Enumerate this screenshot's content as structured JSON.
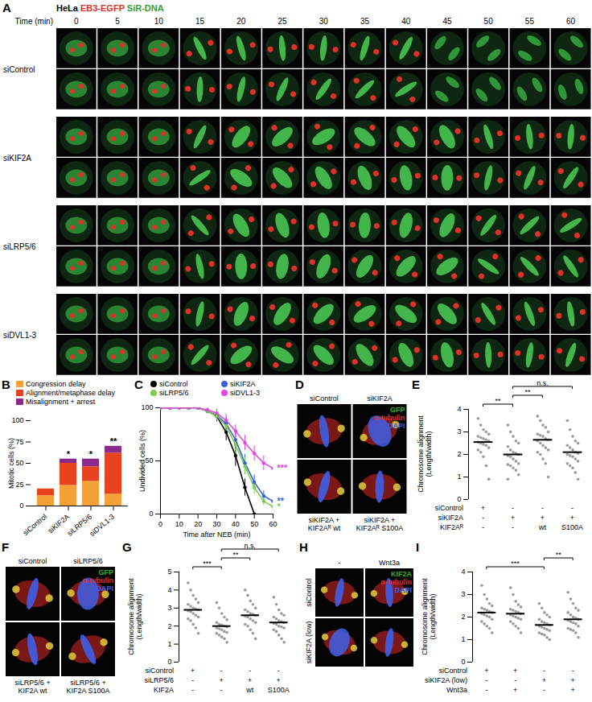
{
  "image_panels": [
    {
      "panel": "A",
      "header": [
        {
          "text": "HeLa",
          "color": "#000000"
        },
        {
          "text": "EB3-EGFP",
          "color": "#e0302a"
        },
        {
          "text": "SiR-DNA",
          "color": "#2e9e3e"
        }
      ],
      "time_label": "Time (min)",
      "times": [
        0,
        5,
        10,
        15,
        20,
        25,
        30,
        35,
        40,
        45,
        50,
        55,
        60
      ],
      "groups": [
        "siControl",
        "siKIF2A",
        "siLRP5/6",
        "siDVL1-3"
      ],
      "rows_per_group": 2
    },
    {
      "panel": "D",
      "top_labels": [
        "siControl",
        "siKIF2A"
      ],
      "bottom_labels": [
        [
          "siKIF2A +",
          "KIF2Aᴿ wt"
        ],
        [
          "siKIF2A +",
          "KIF2Aᴿ S100A"
        ]
      ],
      "legend": [
        {
          "text": "GFP",
          "color": "#2fb52f"
        },
        {
          "text": "α-tubulin",
          "color": "#e03030"
        },
        {
          "text": "DAPI",
          "color": "#3a5cff"
        }
      ]
    },
    {
      "panel": "F",
      "top_labels": [
        "siControl",
        "siLRP5/6"
      ],
      "bottom_labels": [
        [
          "siLRP5/6 +",
          "KIF2A wt"
        ],
        [
          "siLRP5/6 +",
          "KIF2A S100A"
        ]
      ],
      "legend": [
        {
          "text": "GFP",
          "color": "#2fb52f"
        },
        {
          "text": "α-tubulin",
          "color": "#e03030"
        },
        {
          "text": "DAPI",
          "color": "#3a5cff"
        }
      ]
    },
    {
      "panel": "H",
      "column_labels": [
        "-",
        "Wnt3a"
      ],
      "row_labels": [
        "siControl",
        "siKIF2A (low)"
      ],
      "legend": [
        {
          "text": "KIF2A",
          "color": "#2fb52f"
        },
        {
          "text": "α-tubulin",
          "color": "#e03030"
        },
        {
          "text": "DAPI",
          "color": "#3a5cff"
        }
      ]
    }
  ],
  "chart_data": [
    {
      "panel": "B",
      "type": "bar",
      "stacked": true,
      "legend": "top",
      "categories": [
        "siControl",
        "siKIF2A",
        "siLRP5/6",
        "siDVL1-3"
      ],
      "series": [
        {
          "name": "Congression delay",
          "color": "#f4a238",
          "values": [
            12,
            24,
            29,
            14
          ]
        },
        {
          "name": "Alignment/metaphase delay",
          "color": "#e8431e",
          "values": [
            8,
            26,
            17,
            48
          ]
        },
        {
          "name": "Misalignment + arrest",
          "color": "#8a2a8a",
          "values": [
            0,
            5,
            9,
            8
          ]
        }
      ],
      "ylabel": "Mitotic cells (%)",
      "ylim": [
        0,
        100
      ],
      "yticks": [
        0,
        25,
        50,
        75,
        100
      ],
      "annotations": [
        {
          "category": "siKIF2A",
          "text": "*"
        },
        {
          "category": "siLRP5/6",
          "text": "*"
        },
        {
          "category": "siDVL1-3",
          "text": "**"
        }
      ]
    },
    {
      "panel": "C",
      "type": "line",
      "marker": "circle",
      "legend": "top",
      "x": [
        0,
        5,
        10,
        15,
        20,
        25,
        30,
        35,
        40,
        45,
        50,
        55,
        60
      ],
      "series": [
        {
          "name": "siControl",
          "color": "#000000",
          "values": [
            100,
            100,
            100,
            100,
            100,
            97,
            92,
            77,
            55,
            25,
            0,
            null,
            null
          ],
          "errors": [
            0,
            0,
            0,
            0,
            0,
            2,
            5,
            8,
            10,
            8,
            0,
            null,
            null
          ]
        },
        {
          "name": "siKIF2A",
          "color": "#3a5fd9",
          "values": [
            100,
            100,
            100,
            100,
            100,
            97,
            93,
            85,
            70,
            48,
            30,
            17,
            12
          ],
          "errors": [
            0,
            0,
            0,
            0,
            0,
            2,
            4,
            6,
            8,
            8,
            7,
            5,
            4
          ],
          "annotation": "**"
        },
        {
          "name": "siLRP5/6",
          "color": "#7ccf4e",
          "values": [
            100,
            100,
            100,
            100,
            100,
            97,
            92,
            83,
            65,
            45,
            25,
            12,
            7
          ],
          "errors": [
            0,
            0,
            0,
            0,
            0,
            2,
            4,
            6,
            8,
            8,
            6,
            4,
            3
          ],
          "annotation": "*"
        },
        {
          "name": "siDVL1-3",
          "color": "#e446e4",
          "values": [
            100,
            100,
            100,
            100,
            100,
            98,
            95,
            88,
            78,
            67,
            57,
            48,
            43
          ],
          "errors": [
            0,
            0,
            0,
            0,
            0,
            2,
            4,
            6,
            6,
            7,
            7,
            7,
            7
          ],
          "annotation": "***"
        }
      ],
      "xlabel": "Time after NEB (min)",
      "ylabel": "Undivided cells (%)",
      "xlim": [
        0,
        60
      ],
      "xticks": [
        0,
        10,
        20,
        30,
        40,
        50,
        60
      ],
      "ylim": [
        0,
        100
      ],
      "yticks": [
        0,
        50,
        100
      ]
    },
    {
      "panel": "E",
      "type": "scatter",
      "color": "#9a9a9a",
      "ylabel": [
        "Chromosome alignment",
        "(Length/width)"
      ],
      "ylim": [
        0,
        4
      ],
      "yticks": [
        0,
        1,
        2,
        3,
        4
      ],
      "groups": [
        {
          "mean": 2.55,
          "values": [
            3.6,
            3.3,
            3.1,
            3.0,
            2.9,
            2.8,
            2.75,
            2.7,
            2.65,
            2.6,
            2.55,
            2.5,
            2.45,
            2.4,
            2.3,
            2.2,
            2.1,
            1.9,
            1.5,
            0.9
          ]
        },
        {
          "mean": 2.0,
          "values": [
            3.3,
            3.0,
            2.8,
            2.6,
            2.5,
            2.35,
            2.2,
            2.1,
            2.05,
            2.0,
            1.95,
            1.9,
            1.8,
            1.7,
            1.6,
            1.55,
            1.5,
            1.4,
            1.3,
            1.1,
            0.9
          ]
        },
        {
          "mean": 2.65,
          "values": [
            3.7,
            3.5,
            3.3,
            3.2,
            3.0,
            2.9,
            2.85,
            2.8,
            2.7,
            2.65,
            2.6,
            2.5,
            2.4,
            2.3,
            2.2,
            2.1,
            2.0,
            1.8,
            1.6,
            1.0
          ]
        },
        {
          "mean": 2.1,
          "values": [
            3.5,
            3.1,
            2.8,
            2.6,
            2.5,
            2.4,
            2.3,
            2.2,
            2.1,
            2.05,
            2.0,
            1.95,
            1.9,
            1.8,
            1.7,
            1.6,
            1.5,
            1.4,
            1.2,
            0.9
          ]
        }
      ],
      "conditions": [
        {
          "name": "siControl",
          "values": [
            "+",
            "-",
            "-",
            "-"
          ]
        },
        {
          "name": "siKIF2A",
          "values": [
            "-",
            "+",
            "+",
            "+"
          ]
        },
        {
          "name": "KIF2Aᴿ",
          "values": [
            "-",
            "-",
            "wt",
            "S100A"
          ]
        }
      ],
      "comparisons": [
        {
          "groups": [
            0,
            1
          ],
          "text": "**"
        },
        {
          "groups": [
            1,
            2
          ],
          "text": "**"
        },
        {
          "groups": [
            1,
            3
          ],
          "text": "n.s."
        }
      ]
    },
    {
      "panel": "G",
      "type": "scatter",
      "color": "#9a9a9a",
      "ylabel": [
        "Chromosome alignment",
        "(Length/width)"
      ],
      "ylim": [
        0,
        5
      ],
      "yticks": [
        0,
        1,
        2,
        3,
        4,
        5
      ],
      "groups": [
        {
          "mean": 2.9,
          "values": [
            4.4,
            4.0,
            3.7,
            3.5,
            3.3,
            3.2,
            3.1,
            3.0,
            2.95,
            2.9,
            2.85,
            2.8,
            2.7,
            2.6,
            2.5,
            2.4,
            2.3,
            2.1,
            1.9,
            1.6
          ]
        },
        {
          "mean": 2.0,
          "values": [
            3.3,
            3.0,
            2.7,
            2.5,
            2.35,
            2.2,
            2.1,
            2.05,
            2.0,
            1.95,
            1.9,
            1.85,
            1.8,
            1.7,
            1.65,
            1.6,
            1.5,
            1.4,
            1.3,
            1.1
          ]
        },
        {
          "mean": 2.6,
          "values": [
            4.0,
            3.7,
            3.4,
            3.2,
            3.0,
            2.9,
            2.8,
            2.7,
            2.65,
            2.6,
            2.55,
            2.5,
            2.4,
            2.3,
            2.2,
            2.1,
            2.0,
            1.8,
            1.6,
            1.3
          ]
        },
        {
          "mean": 2.2,
          "values": [
            3.6,
            3.2,
            2.9,
            2.7,
            2.6,
            2.5,
            2.4,
            2.3,
            2.25,
            2.2,
            2.15,
            2.1,
            2.0,
            1.95,
            1.9,
            1.8,
            1.7,
            1.5,
            1.3,
            1.1
          ]
        }
      ],
      "conditions": [
        {
          "name": "siControl",
          "values": [
            "+",
            "-",
            "-",
            "-"
          ]
        },
        {
          "name": "siLRP5/6",
          "values": [
            "-",
            "+",
            "+",
            "+"
          ]
        },
        {
          "name": "KIF2A",
          "values": [
            "-",
            "-",
            "wt",
            "S100A"
          ]
        }
      ],
      "comparisons": [
        {
          "groups": [
            0,
            1
          ],
          "text": "***"
        },
        {
          "groups": [
            1,
            2
          ],
          "text": "**"
        },
        {
          "groups": [
            1,
            3
          ],
          "text": "n.s."
        }
      ]
    },
    {
      "panel": "I",
      "type": "scatter",
      "color": "#9a9a9a",
      "ylabel": [
        "Chromosome alignment",
        "(Length/width)"
      ],
      "ylim": [
        0,
        4
      ],
      "yticks": [
        0,
        1,
        2,
        3,
        4
      ],
      "groups": [
        {
          "mean": 2.2,
          "values": [
            3.4,
            3.0,
            2.8,
            2.6,
            2.5,
            2.4,
            2.35,
            2.3,
            2.25,
            2.2,
            2.15,
            2.1,
            2.05,
            2.0,
            1.9,
            1.8,
            1.7,
            1.6,
            1.5,
            1.3
          ]
        },
        {
          "mean": 2.15,
          "values": [
            3.3,
            3.0,
            2.7,
            2.55,
            2.45,
            2.35,
            2.3,
            2.25,
            2.2,
            2.15,
            2.1,
            2.05,
            2.0,
            1.95,
            1.9,
            1.8,
            1.7,
            1.6,
            1.5,
            1.3
          ]
        },
        {
          "mean": 1.65,
          "values": [
            2.6,
            2.4,
            2.2,
            2.1,
            2.0,
            1.9,
            1.8,
            1.75,
            1.7,
            1.65,
            1.6,
            1.55,
            1.5,
            1.45,
            1.4,
            1.3,
            1.25,
            1.2,
            1.1,
            1.0
          ]
        },
        {
          "mean": 1.9,
          "values": [
            3.1,
            2.8,
            2.6,
            2.4,
            2.3,
            2.2,
            2.1,
            2.0,
            1.95,
            1.9,
            1.85,
            1.8,
            1.75,
            1.7,
            1.6,
            1.5,
            1.45,
            1.4,
            1.3,
            1.1
          ]
        }
      ],
      "conditions": [
        {
          "name": "siControl",
          "values": [
            "+",
            "+",
            "-",
            "-"
          ]
        },
        {
          "name": "siKIF2A (low)",
          "values": [
            "-",
            "-",
            "+",
            "+"
          ]
        },
        {
          "name": "Wnt3a",
          "values": [
            "-",
            "+",
            "-",
            "+"
          ]
        }
      ],
      "comparisons": [
        {
          "groups": [
            0,
            2
          ],
          "text": "***"
        },
        {
          "groups": [
            2,
            3
          ],
          "text": "**"
        }
      ]
    }
  ]
}
